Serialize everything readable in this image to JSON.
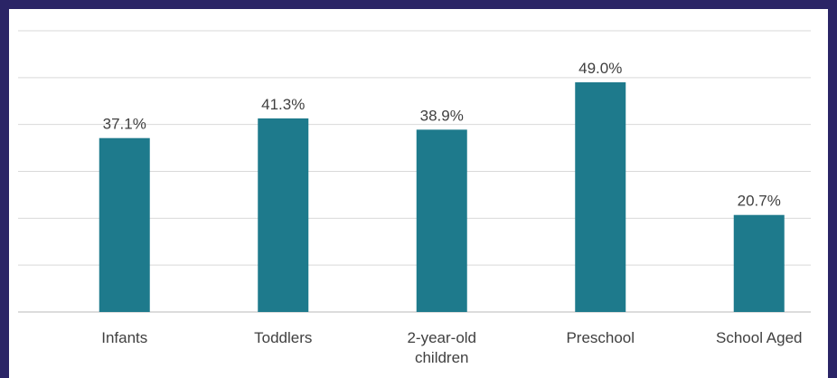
{
  "chart_data": {
    "type": "bar",
    "categories": [
      "Infants",
      "Toddlers",
      "2-year-old children",
      "Preschool",
      "School Aged"
    ],
    "category_label_lines": [
      [
        "Infants"
      ],
      [
        "Toddlers"
      ],
      [
        "2-year-old",
        "children"
      ],
      [
        "Preschool"
      ],
      [
        "School Aged"
      ]
    ],
    "values": [
      37.1,
      41.3,
      38.9,
      49.0,
      20.7
    ],
    "value_labels": [
      "37.1%",
      "41.3%",
      "38.9%",
      "49.0%",
      "20.7%"
    ],
    "ylim": [
      0,
      60
    ],
    "grid": true,
    "grid_step": 10,
    "legend": "none",
    "bar_color": "#1e7a8c",
    "frame_color": "#2a2466"
  }
}
